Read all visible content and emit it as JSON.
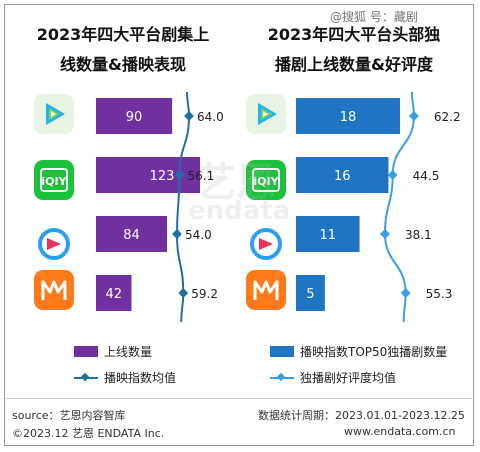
{
  "left_title_line1": "2023年四大平台剧集上",
  "left_title_line2": "线数量&播映表现",
  "right_title_line1": "2023年四大平台头部独",
  "right_title_line2": "播剧上线数量&好评度",
  "top_watermark": "@搜狐 号：藏剧",
  "center_watermark": "艺恩",
  "center_watermark_sub": "endata",
  "platform_icons": [
    "tencent-video-icon",
    "iqiyi-icon",
    "youku-icon",
    "mango-tv-icon"
  ],
  "colors": {
    "left_bar": "#7030a0",
    "left_line": "#1f6fa3",
    "right_bar": "#1f75c4",
    "right_line": "#3a9ee4"
  },
  "chart_data": [
    {
      "type": "bar",
      "title": "2023年四大平台剧集上线数量&播映表现",
      "categories": [
        "腾讯视频",
        "爱奇艺",
        "优酷",
        "芒果TV"
      ],
      "series": [
        {
          "name": "上线数量",
          "values": [
            90,
            123,
            84,
            42
          ]
        },
        {
          "name": "播映指数均值",
          "values": [
            64.0,
            56.1,
            54.0,
            59.2
          ],
          "render": "line"
        }
      ],
      "value_labels": [
        "90",
        "123",
        "84",
        "42"
      ],
      "line_labels": [
        "64.0",
        "56.1",
        "54.0",
        "59.2"
      ]
    },
    {
      "type": "bar",
      "title": "2023年四大平台头部独播剧上线数量&好评度",
      "categories": [
        "腾讯视频",
        "爱奇艺",
        "优酷",
        "芒果TV"
      ],
      "series": [
        {
          "name": "播映指数TOP50独播剧数量",
          "values": [
            18,
            16,
            11,
            5
          ]
        },
        {
          "name": "独播剧好评度均值",
          "values": [
            62.2,
            44.5,
            38.1,
            55.3
          ],
          "render": "line"
        }
      ],
      "value_labels": [
        "18",
        "16",
        "11",
        "5"
      ],
      "line_labels": [
        "62.2",
        "44.5",
        "38.1",
        "55.3"
      ]
    }
  ],
  "legend": {
    "left_bar": "上线数量",
    "left_line": "播映指数均值",
    "right_bar": "播映指数TOP50独播剧数量",
    "right_line": "独播剧好评度均值"
  },
  "footer": {
    "source": "source：艺恩内容智库",
    "period": "数据统计周期：2023.01.01-2023.12.25",
    "copyright": "©2023.12  艺恩 ENDATA Inc.",
    "url": "www.endata.com.cn"
  }
}
